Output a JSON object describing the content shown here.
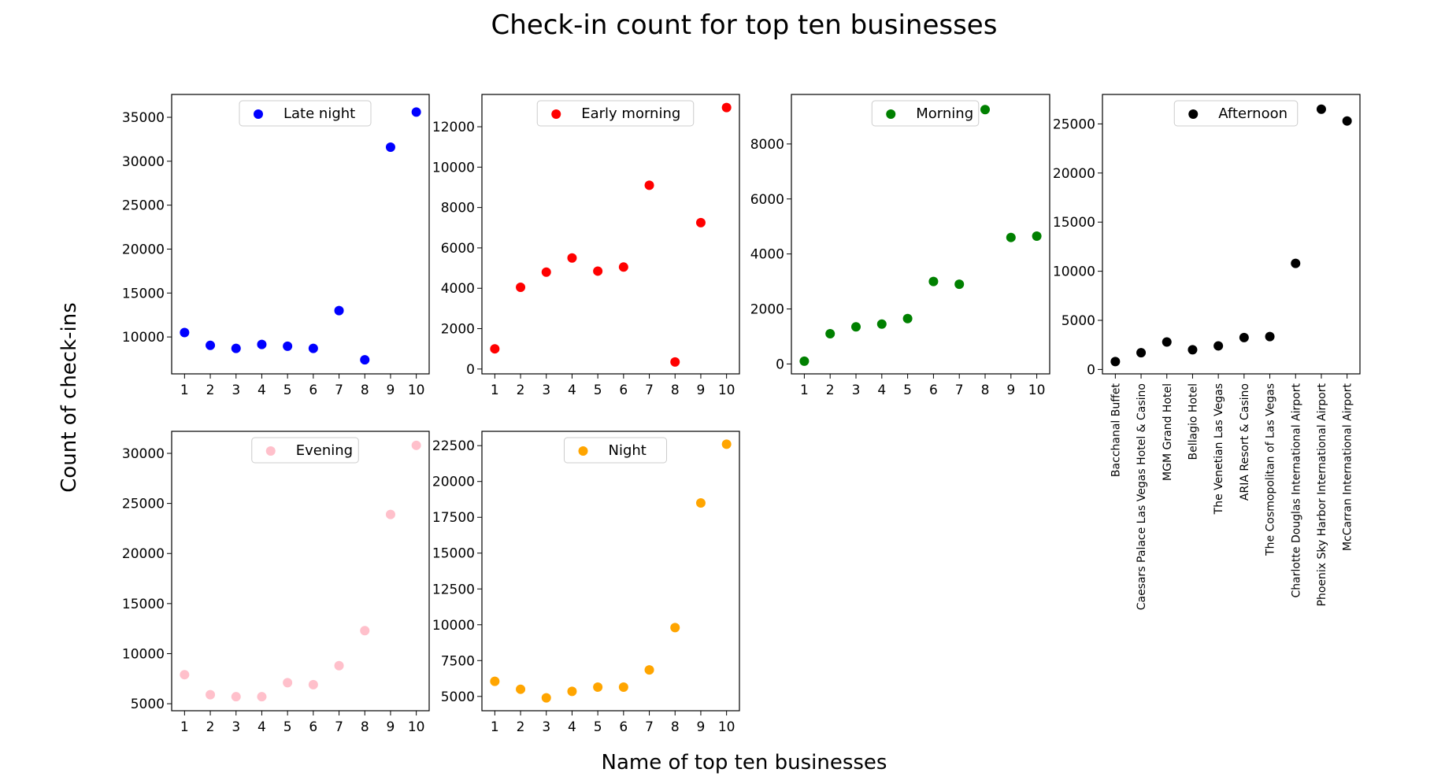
{
  "figure": {
    "title": "Check-in count for top ten businesses",
    "xlabel": "Name of top ten businesses",
    "ylabel": "Count of check-ins"
  },
  "chart_data": [
    {
      "type": "scatter",
      "name": "Late night",
      "color": "#0000ff",
      "x": [
        1,
        2,
        3,
        4,
        5,
        6,
        7,
        8,
        9,
        10
      ],
      "y": [
        10500,
        9050,
        8700,
        9150,
        8950,
        8700,
        13000,
        7400,
        31600,
        35600
      ],
      "xlim": [
        0.5,
        10.5
      ],
      "ylim": [
        5800,
        37600
      ],
      "yticks": [
        10000,
        15000,
        20000,
        25000,
        30000,
        35000
      ],
      "xticks": [
        1,
        2,
        3,
        4,
        5,
        6,
        7,
        8,
        9,
        10
      ],
      "legend": "upper center"
    },
    {
      "type": "scatter",
      "name": "Early morning",
      "color": "#ff0000",
      "x": [
        1,
        2,
        3,
        4,
        5,
        6,
        7,
        8,
        9,
        10
      ],
      "y": [
        1000,
        4050,
        4800,
        5500,
        4850,
        5050,
        9100,
        350,
        7250,
        12950
      ],
      "xlim": [
        0.5,
        10.5
      ],
      "ylim": [
        -240,
        13600
      ],
      "yticks": [
        0,
        2000,
        4000,
        6000,
        8000,
        10000,
        12000
      ],
      "xticks": [
        1,
        2,
        3,
        4,
        5,
        6,
        7,
        8,
        9,
        10
      ],
      "legend": "upper center"
    },
    {
      "type": "scatter",
      "name": "Morning",
      "color": "#008000",
      "x": [
        1,
        2,
        3,
        4,
        5,
        6,
        7,
        8,
        9,
        10
      ],
      "y": [
        100,
        1100,
        1350,
        1450,
        1650,
        3000,
        2900,
        9250,
        4600,
        4650
      ],
      "xlim": [
        0.5,
        10.5
      ],
      "ylim": [
        -360,
        9800
      ],
      "yticks": [
        0,
        2000,
        4000,
        6000,
        8000
      ],
      "xticks": [
        1,
        2,
        3,
        4,
        5,
        6,
        7,
        8,
        9,
        10
      ],
      "legend": "upper center"
    },
    {
      "type": "scatter",
      "name": "Afternoon",
      "color": "#000000",
      "categories": [
        "Bacchanal Buffet",
        "Caesars Palace Las Vegas Hotel & Casino",
        "MGM Grand Hotel",
        "Bellagio Hotel",
        "The Venetian Las Vegas",
        "ARIA Resort & Casino",
        "The Cosmopolitan of Las Vegas",
        "Charlotte Douglas International Airport",
        "Phoenix Sky Harbor International Airport",
        "McCarran International Airport"
      ],
      "y": [
        800,
        1700,
        2800,
        2000,
        2400,
        3250,
        3350,
        10800,
        26500,
        25300
      ],
      "ylim": [
        -450,
        28000
      ],
      "yticks": [
        0,
        5000,
        10000,
        15000,
        20000,
        25000
      ],
      "legend": "upper center"
    },
    {
      "type": "scatter",
      "name": "Evening",
      "color": "#ffc0cb",
      "x": [
        1,
        2,
        3,
        4,
        5,
        6,
        7,
        8,
        9,
        10
      ],
      "y": [
        7900,
        5900,
        5700,
        5700,
        7100,
        6900,
        8800,
        12300,
        23900,
        30800
      ],
      "xlim": [
        0.5,
        10.5
      ],
      "ylim": [
        4300,
        32200
      ],
      "yticks": [
        5000,
        10000,
        15000,
        20000,
        25000,
        30000
      ],
      "xticks": [
        1,
        2,
        3,
        4,
        5,
        6,
        7,
        8,
        9,
        10
      ],
      "legend": "upper center"
    },
    {
      "type": "scatter",
      "name": "Night",
      "color": "#ffa500",
      "x": [
        1,
        2,
        3,
        4,
        5,
        6,
        7,
        8,
        9,
        10
      ],
      "y": [
        6050,
        5500,
        4900,
        5350,
        5650,
        5650,
        6850,
        9800,
        18500,
        22600
      ],
      "xlim": [
        0.5,
        10.5
      ],
      "ylim": [
        4000,
        23500
      ],
      "yticks": [
        5000,
        7500,
        10000,
        12500,
        15000,
        17500,
        20000,
        22500
      ],
      "xticks": [
        1,
        2,
        3,
        4,
        5,
        6,
        7,
        8,
        9,
        10
      ],
      "legend": "upper center"
    }
  ]
}
